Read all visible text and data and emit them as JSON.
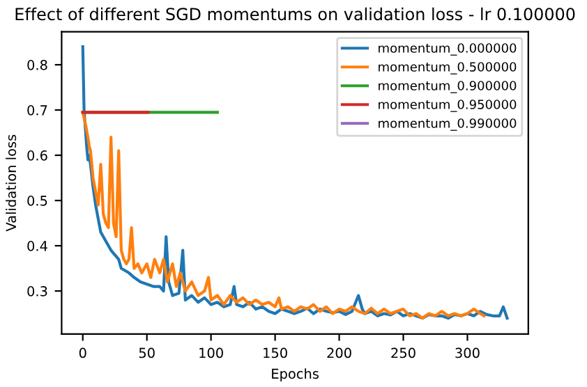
{
  "chart_data": {
    "type": "line",
    "title": "Effect of different SGD momentums on validation loss - lr 0.100000",
    "xlabel": "Epochs",
    "ylabel": "Validation loss",
    "xlim": [
      -16.5,
      347.5
    ],
    "ylim": [
      0.205,
      0.873
    ],
    "xticks": [
      0,
      50,
      100,
      150,
      200,
      250,
      300
    ],
    "yticks": [
      0.3,
      0.4,
      0.5,
      0.6,
      0.7,
      0.8
    ],
    "legend": "top right",
    "grid": false,
    "series": [
      {
        "name": "momentum_0.000000",
        "color": "#1f77b4",
        "x": [
          0,
          1,
          2,
          3,
          4,
          5,
          6,
          8,
          10,
          12,
          14,
          16,
          18,
          20,
          22,
          25,
          28,
          30,
          33,
          36,
          40,
          45,
          50,
          55,
          60,
          63,
          65,
          67,
          70,
          75,
          78,
          80,
          85,
          90,
          95,
          100,
          105,
          110,
          115,
          118,
          120,
          125,
          130,
          135,
          140,
          145,
          150,
          155,
          160,
          165,
          170,
          175,
          180,
          185,
          190,
          195,
          200,
          205,
          210,
          215,
          218,
          220,
          225,
          230,
          235,
          240,
          245,
          250,
          255,
          260,
          265,
          270,
          275,
          280,
          285,
          290,
          295,
          300,
          305,
          310,
          315,
          320,
          325,
          328,
          331
        ],
        "values": [
          0.84,
          0.7,
          0.66,
          0.62,
          0.59,
          0.6,
          0.58,
          0.53,
          0.49,
          0.46,
          0.43,
          0.42,
          0.41,
          0.4,
          0.39,
          0.38,
          0.37,
          0.35,
          0.345,
          0.34,
          0.33,
          0.32,
          0.315,
          0.31,
          0.31,
          0.3,
          0.42,
          0.32,
          0.29,
          0.295,
          0.39,
          0.28,
          0.29,
          0.275,
          0.285,
          0.27,
          0.275,
          0.265,
          0.27,
          0.31,
          0.27,
          0.265,
          0.275,
          0.26,
          0.265,
          0.255,
          0.25,
          0.26,
          0.255,
          0.25,
          0.255,
          0.262,
          0.25,
          0.26,
          0.255,
          0.252,
          0.255,
          0.248,
          0.255,
          0.29,
          0.26,
          0.25,
          0.255,
          0.245,
          0.25,
          0.247,
          0.255,
          0.245,
          0.25,
          0.245,
          0.24,
          0.248,
          0.245,
          0.245,
          0.24,
          0.248,
          0.245,
          0.25,
          0.245,
          0.255,
          0.248,
          0.245,
          0.245,
          0.265,
          0.24
        ]
      },
      {
        "name": "momentum_0.500000",
        "color": "#ff7f0e",
        "x": [
          0,
          2,
          4,
          5,
          6,
          8,
          10,
          12,
          14,
          16,
          18,
          20,
          22,
          24,
          26,
          28,
          30,
          32,
          34,
          36,
          38,
          40,
          43,
          46,
          50,
          53,
          56,
          60,
          63,
          66,
          70,
          73,
          76,
          80,
          85,
          90,
          95,
          98,
          100,
          105,
          110,
          115,
          120,
          125,
          130,
          135,
          140,
          145,
          150,
          153,
          155,
          160,
          165,
          170,
          175,
          180,
          185,
          190,
          195,
          200,
          205,
          210,
          215,
          220,
          225,
          230,
          235,
          240,
          245,
          250,
          255,
          260,
          265,
          270,
          275,
          280,
          285,
          290,
          295,
          300,
          305,
          310,
          313
        ],
        "values": [
          0.695,
          0.67,
          0.64,
          0.62,
          0.61,
          0.55,
          0.52,
          0.49,
          0.58,
          0.47,
          0.45,
          0.44,
          0.64,
          0.45,
          0.42,
          0.61,
          0.39,
          0.37,
          0.36,
          0.37,
          0.44,
          0.35,
          0.36,
          0.34,
          0.36,
          0.33,
          0.37,
          0.34,
          0.37,
          0.32,
          0.36,
          0.31,
          0.34,
          0.3,
          0.32,
          0.29,
          0.3,
          0.33,
          0.28,
          0.29,
          0.27,
          0.29,
          0.275,
          0.285,
          0.27,
          0.28,
          0.27,
          0.275,
          0.265,
          0.285,
          0.26,
          0.265,
          0.255,
          0.265,
          0.26,
          0.27,
          0.255,
          0.265,
          0.25,
          0.26,
          0.255,
          0.265,
          0.255,
          0.25,
          0.262,
          0.25,
          0.26,
          0.25,
          0.255,
          0.26,
          0.245,
          0.25,
          0.24,
          0.25,
          0.245,
          0.255,
          0.245,
          0.25,
          0.245,
          0.25,
          0.26,
          0.25,
          0.245
        ]
      },
      {
        "name": "momentum_0.900000",
        "color": "#2ca02c",
        "x": [
          0,
          105
        ],
        "values": [
          0.695,
          0.695
        ]
      },
      {
        "name": "momentum_0.950000",
        "color": "#d62728",
        "x": [
          0,
          51
        ],
        "values": [
          0.695,
          0.695
        ]
      },
      {
        "name": "momentum_0.990000",
        "color": "#9467bd"
      }
    ]
  }
}
